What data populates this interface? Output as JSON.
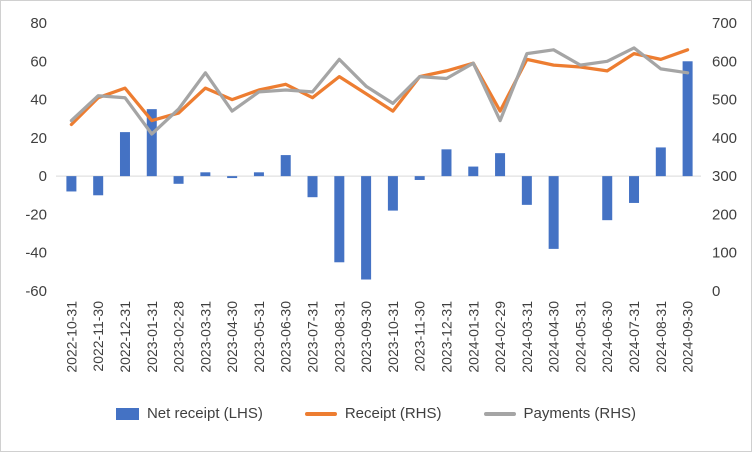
{
  "chart_data": {
    "type": "combo-bar-line",
    "title": "",
    "categories": [
      "2022-10-31",
      "2022-11-30",
      "2022-12-31",
      "2023-01-31",
      "2023-02-28",
      "2023-03-31",
      "2023-04-30",
      "2023-05-31",
      "2023-06-30",
      "2023-07-31",
      "2023-08-31",
      "2023-09-30",
      "2023-10-31",
      "2023-11-30",
      "2023-12-31",
      "2024-01-31",
      "2024-02-29",
      "2024-03-31",
      "2024-04-30",
      "2024-05-31",
      "2024-06-30",
      "2024-07-31",
      "2024-08-31",
      "2024-09-30"
    ],
    "series": [
      {
        "name": "Net receipt (LHS)",
        "type": "bar",
        "axis": "left",
        "color": "#4472C4",
        "values": [
          -8,
          -10,
          23,
          35,
          -4,
          2,
          -1,
          2,
          11,
          -11,
          -45,
          -54,
          -18,
          -2,
          14,
          5,
          12,
          -15,
          -38,
          0,
          -23,
          -14,
          15,
          60
        ]
      },
      {
        "name": "Receipt (RHS)",
        "type": "line",
        "axis": "right",
        "color": "#ED7D31",
        "values": [
          435,
          505,
          530,
          445,
          465,
          530,
          500,
          525,
          540,
          505,
          560,
          515,
          470,
          560,
          575,
          595,
          470,
          605,
          590,
          585,
          575,
          620,
          605,
          630
        ]
      },
      {
        "name": "Payments (RHS)",
        "type": "line",
        "axis": "right",
        "color": "#A5A5A5",
        "values": [
          445,
          510,
          505,
          410,
          475,
          570,
          470,
          520,
          525,
          520,
          605,
          535,
          490,
          560,
          555,
          595,
          445,
          620,
          630,
          590,
          600,
          635,
          580,
          570
        ]
      }
    ],
    "left_axis": {
      "min": -60,
      "max": 80,
      "step": 20,
      "ticks": [
        80,
        60,
        40,
        20,
        0,
        -20,
        -40,
        -60
      ]
    },
    "right_axis": {
      "min": 0,
      "max": 700,
      "step": 100,
      "ticks": [
        700,
        600,
        500,
        400,
        300,
        200,
        100,
        0
      ]
    },
    "grid": "zero-line-only",
    "zero_line_color": "#D9D9D9",
    "legend_position": "bottom"
  },
  "colors": {
    "bar": "#4472C4",
    "receipt_line": "#ED7D31",
    "payments_line": "#A5A5A5",
    "axis_text": "#3f3f3f",
    "frame_border": "#d0d0d0"
  }
}
